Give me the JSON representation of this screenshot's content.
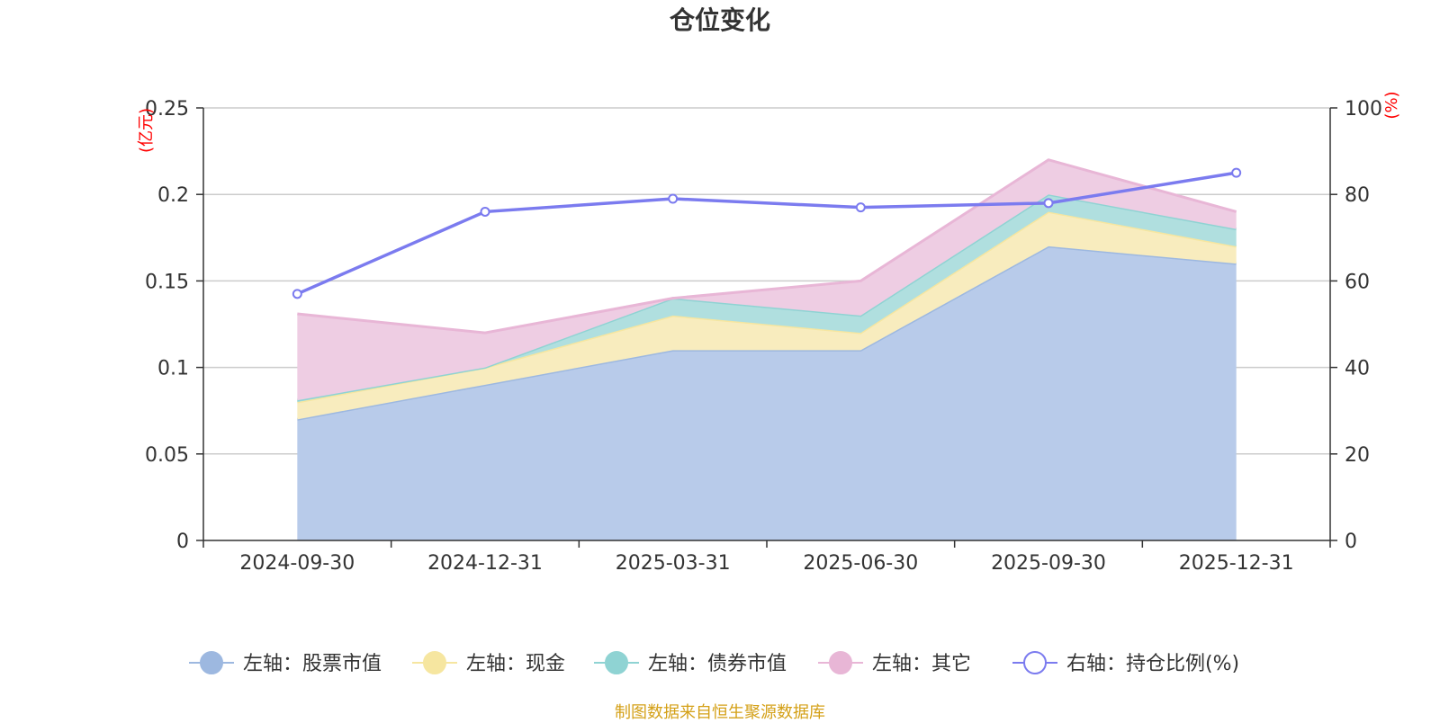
{
  "chart_data": {
    "type": "area",
    "title": "仓位变化",
    "categories": [
      "2024-09-30",
      "2024-12-31",
      "2025-03-31",
      "2025-06-30",
      "2025-09-30",
      "2025-12-31"
    ],
    "left_axis": {
      "unit": "(亿元)",
      "ylim": [
        0,
        0.25
      ],
      "ticks": [
        "0",
        "0.05",
        "0.1",
        "0.15",
        "0.2",
        "0.25"
      ]
    },
    "right_axis": {
      "unit": "(%)",
      "ylim": [
        0,
        100
      ],
      "ticks": [
        "0",
        "20",
        "40",
        "60",
        "80",
        "100"
      ]
    },
    "grid": true,
    "legend_position": "bottom",
    "stacked_series": [
      {
        "name": "左轴：股票市值",
        "color": "#9db8e0",
        "fill": "#b8cbea",
        "values": [
          0.07,
          0.09,
          0.11,
          0.11,
          0.17,
          0.16
        ]
      },
      {
        "name": "左轴：现金",
        "color": "#f6e6a0",
        "fill": "#f8ecbe",
        "values": [
          0.01,
          0.01,
          0.02,
          0.01,
          0.02,
          0.01
        ]
      },
      {
        "name": "左轴：债券市值",
        "color": "#8fd3d3",
        "fill": "#b0dfdf",
        "values": [
          0.001,
          0.0,
          0.01,
          0.01,
          0.01,
          0.01
        ]
      },
      {
        "name": "左轴：其它",
        "color": "#e8b6d6",
        "fill": "#eecde3",
        "values": [
          0.05,
          0.02,
          0.0,
          0.02,
          0.02,
          0.01
        ]
      }
    ],
    "line_series": {
      "name": "右轴：持仓比例(%)",
      "color": "#7b7bef",
      "values": [
        57,
        76,
        79,
        77,
        78,
        85
      ]
    },
    "source": "制图数据来自恒生聚源数据库"
  }
}
